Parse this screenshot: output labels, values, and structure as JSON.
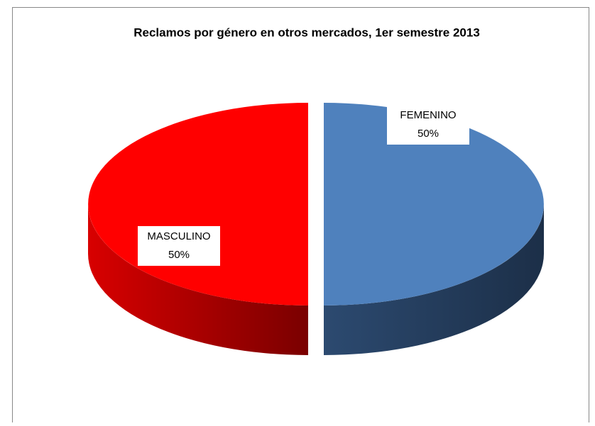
{
  "chart_data": {
    "type": "pie",
    "title": "Reclamos por género en otros mercados, 1er semestre 2013",
    "categories": [
      "FEMENINO",
      "MASCULINO"
    ],
    "values": [
      50,
      50
    ],
    "value_labels": [
      "50%",
      "50%"
    ],
    "colors": [
      "#4f81bd",
      "#ff0000"
    ]
  }
}
